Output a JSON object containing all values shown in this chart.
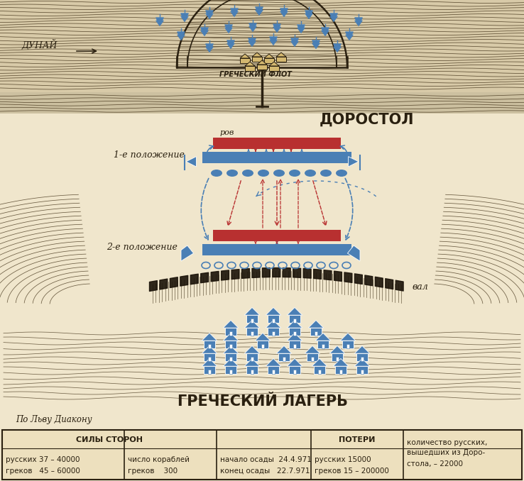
{
  "bg_color": "#f0e6cc",
  "title_dorostol": "ДОРОСТОЛ",
  "title_greek_fleet": "ГРЕЧЕСКИЙ ФЛОТ",
  "title_greek_camp": "ГРЕЧЕСКИЙ ЛАГЕРЬ",
  "label_dunay": "ДУНАЙ",
  "label_rov": "ров",
  "label_val": "вал",
  "label_pos1": "1-е положение",
  "label_pos2": "2-е положение",
  "label_author": "По Льву Диакону",
  "blue_color": "#4a7fb5",
  "red_color": "#b83030",
  "dark_color": "#2a2010",
  "line_color": "#4a3a20",
  "river_fill": "#d8caa8",
  "table_bg": "#ede0be"
}
